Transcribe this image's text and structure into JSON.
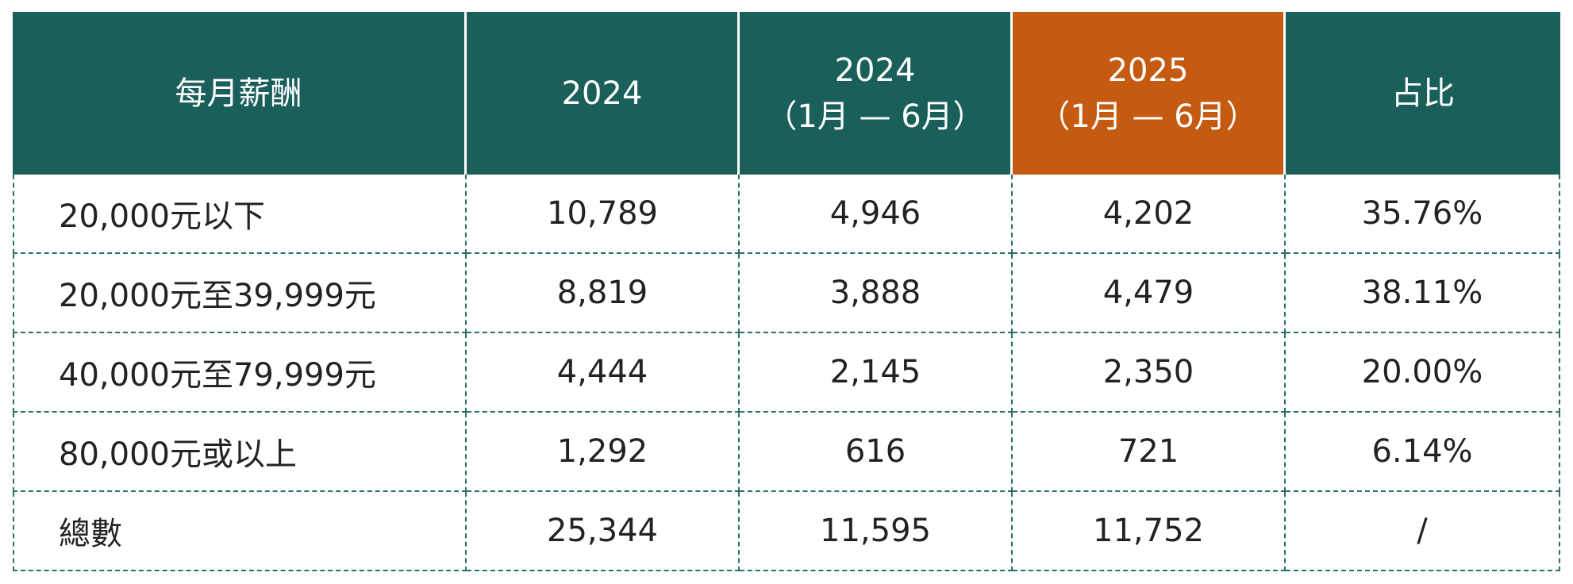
{
  "table": {
    "header": [
      [
        "每月薪酬"
      ],
      [
        "2024"
      ],
      [
        "2024",
        "（1月 — 6月）"
      ],
      [
        "2025",
        "（1月 — 6月）"
      ],
      [
        "占比"
      ]
    ],
    "rows": [
      [
        "20,000元以下",
        "10,789",
        "4,946",
        "4,202",
        "35.76%"
      ],
      [
        "20,000元至39,999元",
        "8,819",
        "3,888",
        "4,479",
        "38.11%"
      ],
      [
        "40,000元至79,999元",
        "4,444",
        "2,145",
        "2,350",
        "20.00%"
      ],
      [
        "80,000元或以上",
        "1,292",
        "616",
        "721",
        "6.14%"
      ],
      [
        "總數",
        "25,344",
        "11,595",
        "11,752",
        "/"
      ]
    ]
  }
}
